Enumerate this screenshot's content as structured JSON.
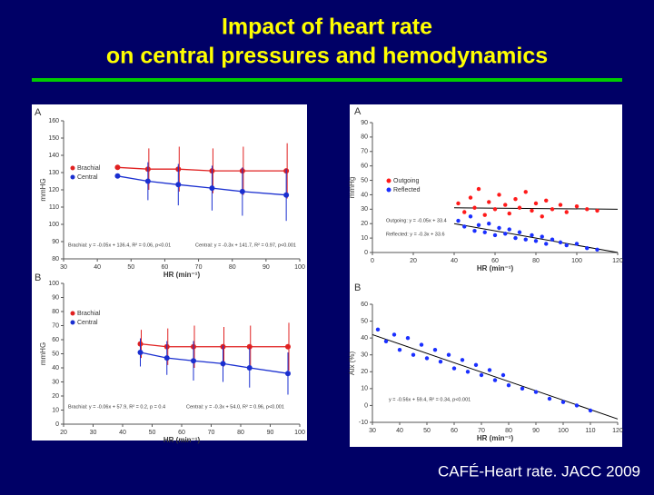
{
  "slide": {
    "title": [
      "Impact of heart rate",
      "on central pressures and hemodynamics"
    ],
    "citation": "CAFÉ-Heart rate. JACC 2009"
  },
  "chart_data": [
    {
      "type": "line",
      "panel_label": "A",
      "y_label": "mmHG",
      "x_label": "HR (min⁻¹)",
      "xlim": [
        30,
        100
      ],
      "xticks": [
        30,
        40,
        50,
        60,
        70,
        80,
        90,
        100
      ],
      "ylim": [
        80,
        160
      ],
      "yticks": [
        80,
        90,
        100,
        110,
        120,
        130,
        140,
        150,
        160
      ],
      "x": [
        46,
        55,
        64,
        74,
        83,
        96
      ],
      "series": [
        {
          "name": "Brachial",
          "color": "#e02020",
          "values": [
            133,
            132,
            132,
            131,
            131,
            131
          ],
          "errors": [
            0,
            12,
            13,
            13,
            14,
            16
          ]
        },
        {
          "name": "Central",
          "color": "#1a2fd0",
          "values": [
            128,
            125,
            123,
            121,
            119,
            117
          ],
          "errors": [
            0,
            11,
            12,
            13,
            14,
            15
          ]
        }
      ],
      "annotations": [
        "Brachial: y = -0.05x + 136.4, R² = 0.06, p<0.01",
        "Central: y = -0.3x + 141.7, R² = 0.97, p<0.001"
      ]
    },
    {
      "type": "line",
      "panel_label": "B",
      "y_label": "mmHG",
      "x_label": "HR (min⁻¹)",
      "xlim": [
        20,
        100
      ],
      "xticks": [
        20,
        30,
        40,
        50,
        60,
        70,
        80,
        90,
        100
      ],
      "ylim": [
        0,
        100
      ],
      "yticks": [
        0,
        10,
        20,
        30,
        40,
        50,
        60,
        70,
        80,
        90,
        100
      ],
      "x": [
        46,
        55,
        64,
        74,
        83,
        96
      ],
      "series": [
        {
          "name": "Brachial",
          "color": "#e02020",
          "values": [
            57,
            55,
            55,
            55,
            55,
            55
          ],
          "errors": [
            10,
            13,
            15,
            14,
            15,
            17
          ]
        },
        {
          "name": "Central",
          "color": "#1a2fd0",
          "values": [
            51,
            47,
            45,
            43,
            40,
            36
          ],
          "errors": [
            10,
            12,
            14,
            13,
            14,
            15
          ]
        }
      ],
      "annotations": [
        "Brachial: y = -0.06x + 57.9, R² = 0.2, p = 0.4",
        "Central: y = -0.3x + 54.0, R² = 0.96, p<0.001"
      ]
    },
    {
      "type": "scatter",
      "panel_label": "A",
      "y_label": "mmHg",
      "x_label": "HR (min⁻¹)",
      "xlim": [
        0,
        120
      ],
      "xticks": [
        0,
        20,
        40,
        60,
        80,
        100,
        120
      ],
      "ylim": [
        0,
        90
      ],
      "yticks": [
        0,
        10,
        20,
        30,
        40,
        50,
        60,
        70,
        80,
        90
      ],
      "series": [
        {
          "name": "Outgoing",
          "color": "#ff1a1a",
          "x": [
            42,
            45,
            48,
            50,
            52,
            55,
            57,
            60,
            62,
            65,
            67,
            70,
            72,
            75,
            78,
            80,
            83,
            85,
            88,
            92,
            95,
            100,
            105,
            110
          ],
          "values": [
            34,
            28,
            38,
            31,
            44,
            26,
            35,
            30,
            40,
            33,
            27,
            37,
            31,
            42,
            29,
            34,
            25,
            36,
            30,
            33,
            28,
            32,
            30,
            29
          ]
        },
        {
          "name": "Reflected",
          "color": "#1a2fff",
          "x": [
            42,
            45,
            48,
            50,
            52,
            55,
            57,
            60,
            62,
            65,
            67,
            70,
            72,
            75,
            78,
            80,
            83,
            85,
            88,
            92,
            95,
            100,
            105,
            110
          ],
          "values": [
            22,
            18,
            25,
            15,
            19,
            14,
            20,
            12,
            17,
            13,
            16,
            10,
            14,
            9,
            12,
            8,
            11,
            6,
            9,
            7,
            5,
            6,
            3,
            2
          ]
        }
      ],
      "fit_lines": [
        {
          "color": "#000000",
          "x": [
            40,
            120
          ],
          "values": [
            31,
            30
          ]
        },
        {
          "color": "#000000",
          "x": [
            40,
            120
          ],
          "values": [
            20,
            0
          ]
        }
      ],
      "annotations": [
        "Outgoing: y = -0.05x + 33.4",
        "Reflected: y = -0.3x + 33.6"
      ]
    },
    {
      "type": "scatter",
      "panel_label": "B",
      "y_label": "AIx (%)",
      "x_label": "HR (min⁻¹)",
      "xlim": [
        30,
        120
      ],
      "xticks": [
        30,
        40,
        50,
        60,
        70,
        80,
        90,
        100,
        110,
        120
      ],
      "ylim": [
        -10,
        60
      ],
      "yticks": [
        -10,
        0,
        10,
        20,
        30,
        40,
        50,
        60
      ],
      "series": [
        {
          "name": "AIx",
          "color": "#1a2fff",
          "x": [
            32,
            35,
            38,
            40,
            43,
            45,
            48,
            50,
            53,
            55,
            58,
            60,
            63,
            65,
            68,
            70,
            73,
            75,
            78,
            80,
            85,
            90,
            95,
            100,
            105,
            110
          ],
          "values": [
            45,
            38,
            42,
            33,
            40,
            30,
            36,
            28,
            33,
            26,
            30,
            22,
            27,
            20,
            24,
            18,
            21,
            15,
            18,
            12,
            10,
            8,
            4,
            2,
            0,
            -3
          ]
        }
      ],
      "fit_lines": [
        {
          "color": "#000000",
          "x": [
            30,
            120
          ],
          "values": [
            42,
            -8
          ]
        }
      ],
      "annotations": [
        "y = -0.56x + 59.4, R² = 0.34, p<0.001"
      ]
    }
  ]
}
